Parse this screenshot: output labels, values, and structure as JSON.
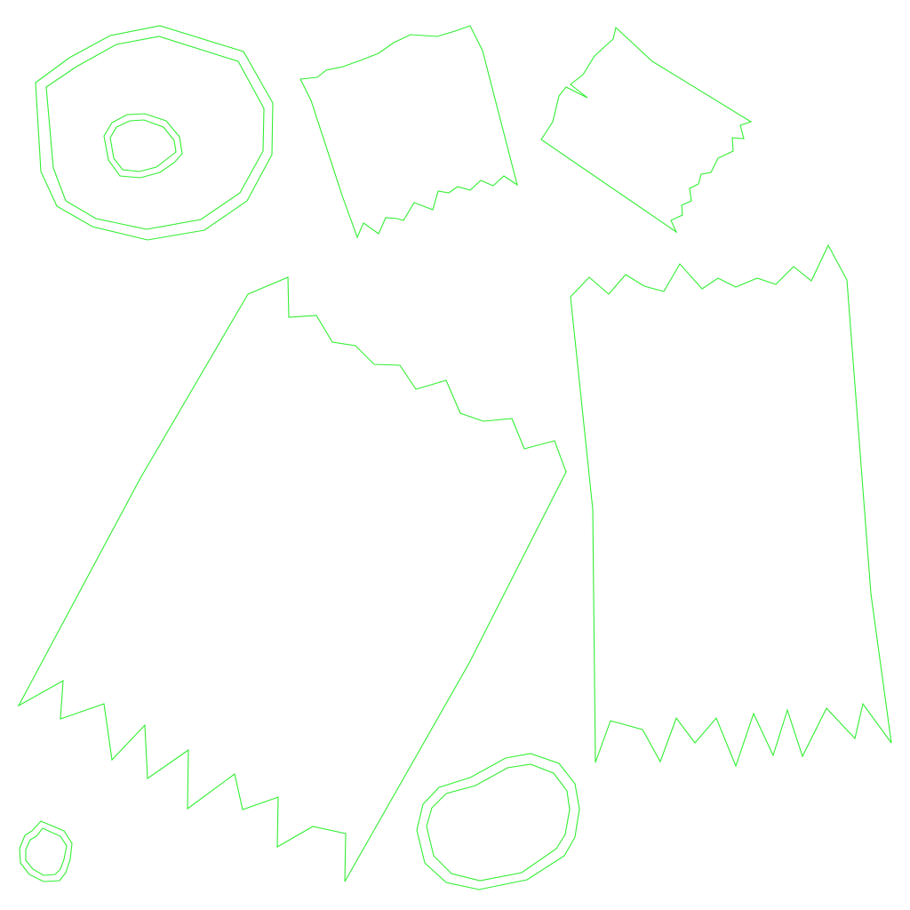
{
  "background": "#ffffff",
  "outline_color": "#33ee33",
  "shapes": [
    {
      "name": "ring-top-left",
      "kind": "ring"
    },
    {
      "name": "torn-piece-top-center",
      "kind": "torn-piece"
    },
    {
      "name": "torn-piece-top-right",
      "kind": "torn-piece"
    },
    {
      "name": "torn-piece-large-left",
      "kind": "torn-piece"
    },
    {
      "name": "torn-piece-large-right",
      "kind": "torn-piece"
    },
    {
      "name": "ring-bottom-center",
      "kind": "ring"
    },
    {
      "name": "ring-bottom-left-small",
      "kind": "ring"
    }
  ]
}
